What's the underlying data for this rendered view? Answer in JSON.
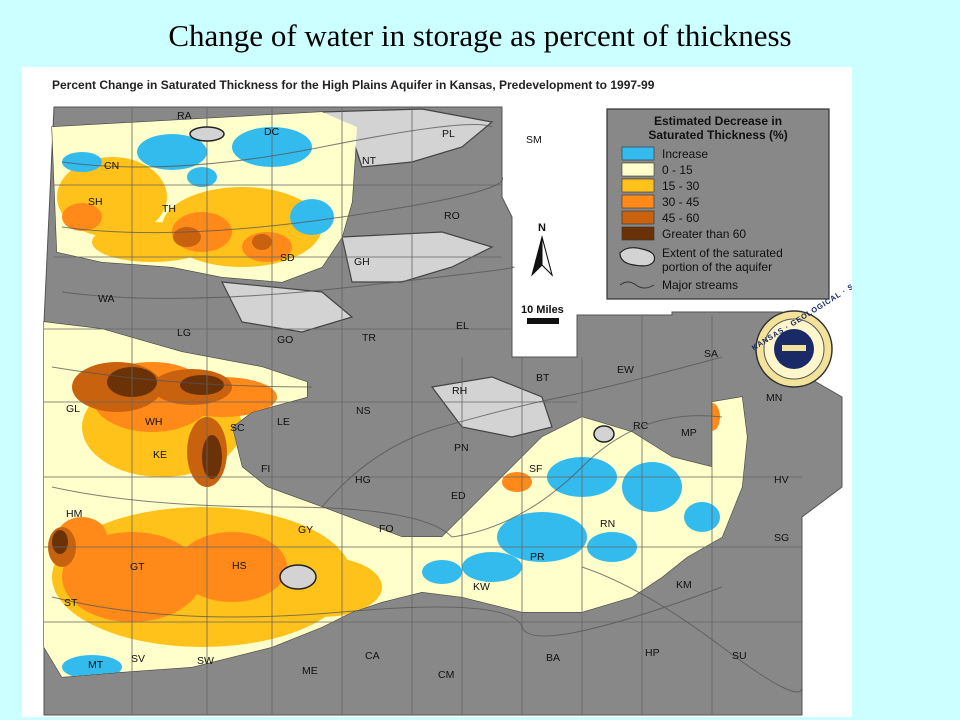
{
  "slide": {
    "title": "Change of water in storage as percent of thickness"
  },
  "map": {
    "heading": "Percent Change in Saturated Thickness for the High Plains Aquifer in Kansas, Predevelopment to 1997-99",
    "north_label": "N",
    "scale_label": "10 Miles",
    "seal_text": "KANSAS · GEOLOGICAL · SURVEY",
    "legend": {
      "title_line1": "Estimated Decrease in",
      "title_line2": "Saturated Thickness (%)",
      "items": [
        {
          "label": "Increase",
          "color": "#33bbee"
        },
        {
          "label": "0 - 15",
          "color": "#ffffcc"
        },
        {
          "label": "15 - 30",
          "color": "#ffc21a"
        },
        {
          "label": "30 - 45",
          "color": "#ff8a1a"
        },
        {
          "label": "45 - 60",
          "color": "#c8620e"
        },
        {
          "label": "Greater than 60",
          "color": "#6b3208"
        }
      ],
      "extent_line1": "Extent of the saturated",
      "extent_line2": "portion of the aquifer",
      "streams_label": "Major streams"
    },
    "counties": [
      {
        "code": "RA"
      },
      {
        "code": "DC"
      },
      {
        "code": "PL"
      },
      {
        "code": "SM"
      },
      {
        "code": "CN"
      },
      {
        "code": "NT"
      },
      {
        "code": "SH"
      },
      {
        "code": "TH"
      },
      {
        "code": "RO"
      },
      {
        "code": "SD"
      },
      {
        "code": "GH"
      },
      {
        "code": "WA"
      },
      {
        "code": "LG"
      },
      {
        "code": "GO"
      },
      {
        "code": "TR"
      },
      {
        "code": "EL"
      },
      {
        "code": "SA"
      },
      {
        "code": "EW"
      },
      {
        "code": "BT"
      },
      {
        "code": "RH"
      },
      {
        "code": "MN"
      },
      {
        "code": "GL"
      },
      {
        "code": "WH"
      },
      {
        "code": "SC"
      },
      {
        "code": "LE"
      },
      {
        "code": "NS"
      },
      {
        "code": "RC"
      },
      {
        "code": "MP"
      },
      {
        "code": "PN"
      },
      {
        "code": "KE"
      },
      {
        "code": "FI"
      },
      {
        "code": "HG"
      },
      {
        "code": "SF"
      },
      {
        "code": "HV"
      },
      {
        "code": "ED"
      },
      {
        "code": "HM"
      },
      {
        "code": "GY"
      },
      {
        "code": "FO"
      },
      {
        "code": "RN"
      },
      {
        "code": "SG"
      },
      {
        "code": "PR"
      },
      {
        "code": "GT"
      },
      {
        "code": "HS"
      },
      {
        "code": "KM"
      },
      {
        "code": "KW"
      },
      {
        "code": "ST"
      },
      {
        "code": "MT"
      },
      {
        "code": "SV"
      },
      {
        "code": "SW"
      },
      {
        "code": "ME"
      },
      {
        "code": "CA"
      },
      {
        "code": "CM"
      },
      {
        "code": "BA"
      },
      {
        "code": "HP"
      },
      {
        "code": "SU"
      }
    ]
  }
}
